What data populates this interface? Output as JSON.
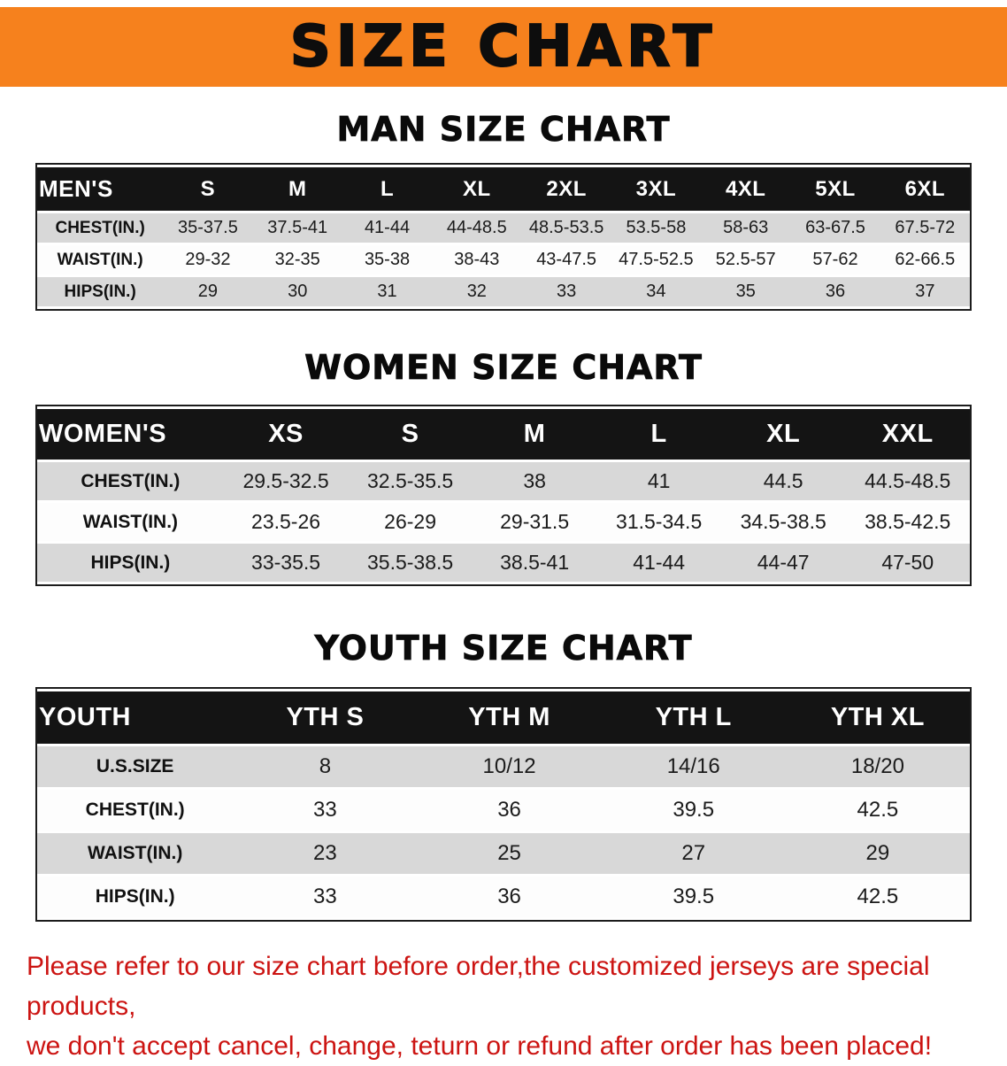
{
  "banner": {
    "title": "SIZE CHART",
    "bg_color": "#F6811D"
  },
  "sections": [
    {
      "heading": "MAN SIZE CHART",
      "table": {
        "header": [
          "MEN'S",
          "S",
          "M",
          "L",
          "XL",
          "2XL",
          "3XL",
          "4XL",
          "5XL",
          "6XL"
        ],
        "rows": [
          [
            "CHEST(IN.)",
            "35-37.5",
            "37.5-41",
            "41-44",
            "44-48.5",
            "48.5-53.5",
            "53.5-58",
            "58-63",
            "63-67.5",
            "67.5-72"
          ],
          [
            "WAIST(IN.)",
            "29-32",
            "32-35",
            "35-38",
            "38-43",
            "43-47.5",
            "47.5-52.5",
            "52.5-57",
            "57-62",
            "62-66.5"
          ],
          [
            "HIPS(IN.)",
            "29",
            "30",
            "31",
            "32",
            "33",
            "34",
            "35",
            "36",
            "37"
          ]
        ]
      }
    },
    {
      "heading": "WOMEN SIZE CHART",
      "table": {
        "header": [
          "WOMEN'S",
          "XS",
          "S",
          "M",
          "L",
          "XL",
          "XXL"
        ],
        "rows": [
          [
            "CHEST(IN.)",
            "29.5-32.5",
            "32.5-35.5",
            "38",
            "41",
            "44.5",
            "44.5-48.5"
          ],
          [
            "WAIST(IN.)",
            "23.5-26",
            "26-29",
            "29-31.5",
            "31.5-34.5",
            "34.5-38.5",
            "38.5-42.5"
          ],
          [
            "HIPS(IN.)",
            "33-35.5",
            "35.5-38.5",
            "38.5-41",
            "41-44",
            "44-47",
            "47-50"
          ]
        ]
      }
    },
    {
      "heading": "YOUTH SIZE CHART",
      "table": {
        "header": [
          "YOUTH",
          "YTH S",
          "YTH M",
          "YTH L",
          "YTH XL"
        ],
        "rows": [
          [
            "U.S.SIZE",
            "8",
            "10/12",
            "14/16",
            "18/20"
          ],
          [
            "CHEST(IN.)",
            "33",
            "36",
            "39.5",
            "42.5"
          ],
          [
            "WAIST(IN.)",
            "23",
            "25",
            "27",
            "29"
          ],
          [
            "HIPS(IN.)",
            "33",
            "36",
            "39.5",
            "42.5"
          ]
        ]
      }
    }
  ],
  "disclaimer": {
    "line1": "Please refer to our size chart before order,the customized jerseys are special products,",
    "line2": "we don't accept cancel, change, teturn or refund after order has been placed!",
    "color": "#CC1412"
  },
  "colors": {
    "banner_orange": "#F6811D",
    "table_header_black": "#141414",
    "row_gray": "#D8D8D8",
    "row_white": "#FDFDFD"
  }
}
